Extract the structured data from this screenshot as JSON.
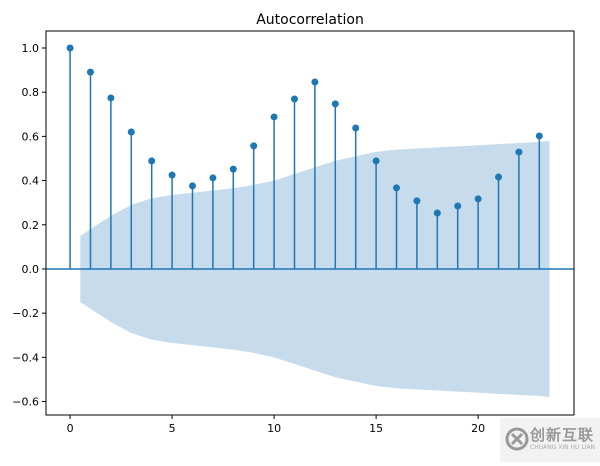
{
  "chart_data": {
    "type": "stem",
    "title": "Autocorrelation",
    "xlabel": "",
    "ylabel": "",
    "x": [
      0,
      1,
      2,
      3,
      4,
      5,
      6,
      7,
      8,
      9,
      10,
      11,
      12,
      13,
      14,
      15,
      16,
      17,
      18,
      19,
      20,
      21,
      22,
      23
    ],
    "values": [
      1.0,
      0.891,
      0.774,
      0.62,
      0.489,
      0.425,
      0.376,
      0.412,
      0.452,
      0.557,
      0.688,
      0.769,
      0.846,
      0.747,
      0.638,
      0.489,
      0.367,
      0.308,
      0.253,
      0.285,
      0.317,
      0.416,
      0.529,
      0.602
    ],
    "confidence_band": {
      "x": [
        0.5,
        1,
        2,
        3,
        4,
        5,
        6,
        7,
        8,
        9,
        10,
        11,
        12,
        13,
        14,
        15,
        16,
        17,
        18,
        19,
        20,
        21,
        22,
        23,
        23.5
      ],
      "upper": [
        0.15,
        0.18,
        0.24,
        0.29,
        0.32,
        0.335,
        0.345,
        0.355,
        0.365,
        0.38,
        0.4,
        0.43,
        0.46,
        0.49,
        0.51,
        0.53,
        0.54,
        0.545,
        0.55,
        0.555,
        0.56,
        0.565,
        0.57,
        0.575,
        0.58
      ]
    },
    "xlim": [
      -1.18,
      24.7
    ],
    "ylim": [
      -0.661,
      1.077
    ],
    "xticks": [
      0,
      5,
      10,
      15,
      20
    ],
    "yticks": [
      -0.6,
      -0.4,
      -0.2,
      0.0,
      0.2,
      0.4,
      0.6,
      0.8,
      1.0
    ],
    "ytick_labels": [
      "−0.6",
      "−0.4",
      "−0.2",
      "0.0",
      "0.2",
      "0.4",
      "0.6",
      "0.8",
      "1.0"
    ],
    "grid": false,
    "colors": {
      "stem": "#1f77b4",
      "band": "#c6dbec",
      "zero_line": "#1f77b4"
    }
  },
  "watermark": {
    "text": "创新互联",
    "subtext": "CHUANG XIN HU LIAN"
  }
}
